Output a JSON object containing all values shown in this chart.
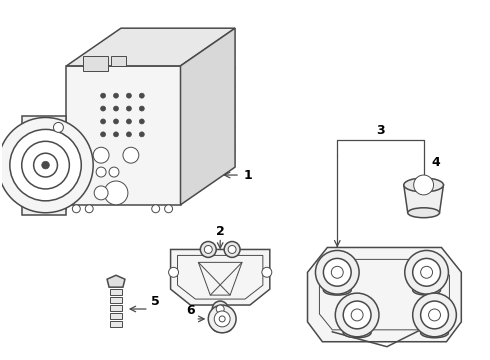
{
  "bg_color": "#ffffff",
  "line_color": "#4a4a4a",
  "label_color": "#000000",
  "lw_main": 1.1,
  "lw_thin": 0.7,
  "label_fontsize": 9
}
